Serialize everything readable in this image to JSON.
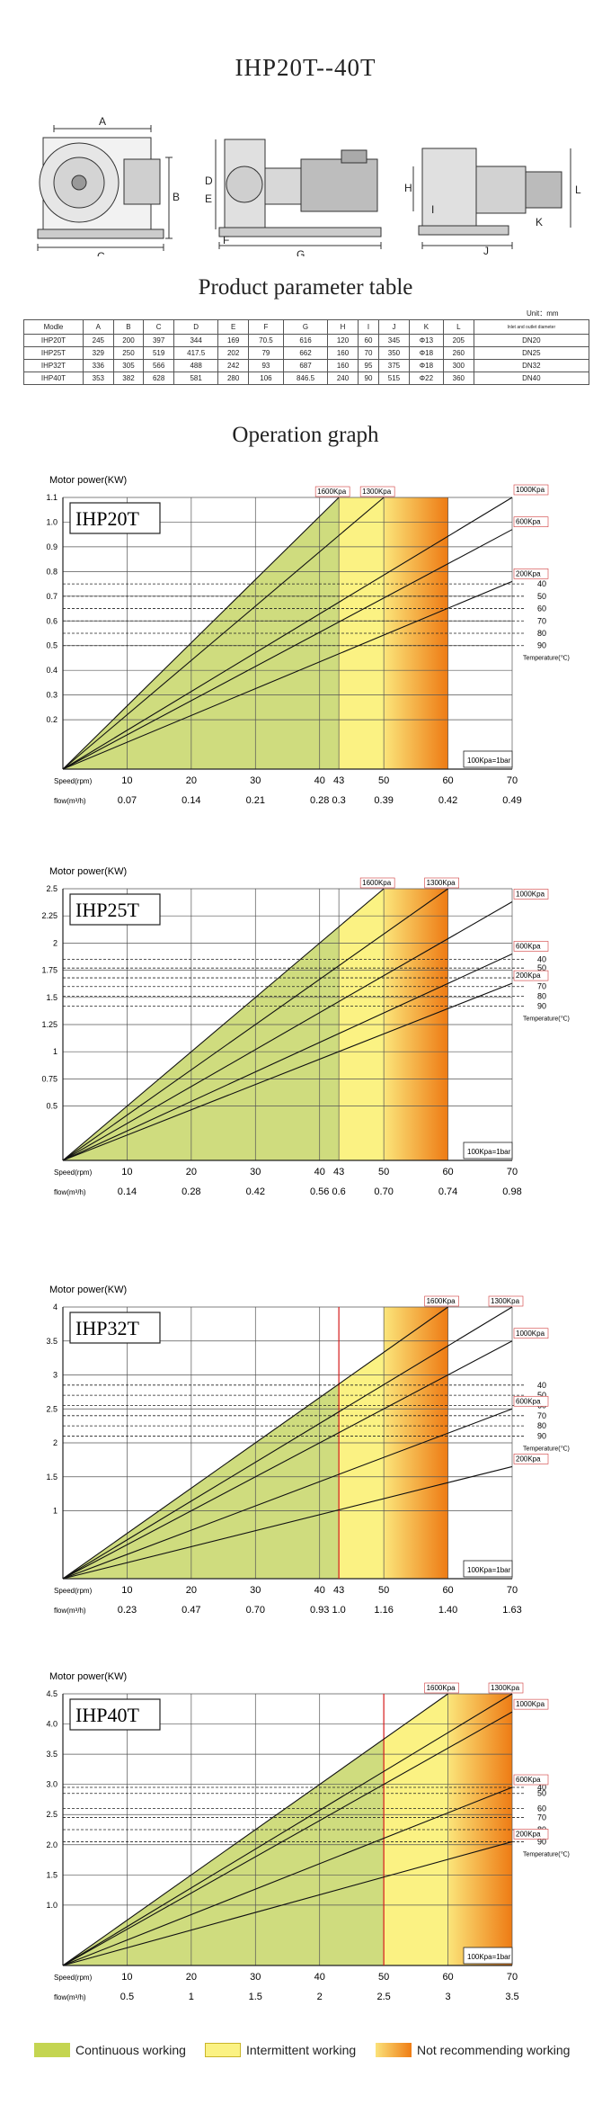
{
  "title": "IHP20T--40T",
  "drawing_labels": [
    "A",
    "B",
    "C",
    "D",
    "E",
    "F",
    "G",
    "H",
    "I",
    "J",
    "K",
    "L"
  ],
  "param_section_title": "Product parameter table",
  "unit_label": "Unit：mm",
  "param_table": {
    "headers": [
      "Modle",
      "A",
      "B",
      "C",
      "D",
      "E",
      "F",
      "G",
      "H",
      "I",
      "J",
      "K",
      "L",
      "Inlet and outlet diameter"
    ],
    "rows": [
      [
        "IHP20T",
        "245",
        "200",
        "397",
        "344",
        "169",
        "70.5",
        "616",
        "120",
        "60",
        "345",
        "Φ13",
        "205",
        "DN20"
      ],
      [
        "IHP25T",
        "329",
        "250",
        "519",
        "417.5",
        "202",
        "79",
        "662",
        "160",
        "70",
        "350",
        "Φ18",
        "260",
        "DN25"
      ],
      [
        "IHP32T",
        "336",
        "305",
        "566",
        "488",
        "242",
        "93",
        "687",
        "160",
        "95",
        "375",
        "Φ18",
        "300",
        "DN32"
      ],
      [
        "IHP40T",
        "353",
        "382",
        "628",
        "581",
        "280",
        "106",
        "846.5",
        "240",
        "90",
        "515",
        "Φ22",
        "360",
        "DN40"
      ]
    ]
  },
  "operation_section_title": "Operation graph",
  "common": {
    "ylabel": "Motor power(KW)",
    "speed_label": "Speed(rpm)",
    "flow_label": "flow(m³/h)",
    "note": "100Kpa=1bar",
    "temperature_label": "Temperature(℃)",
    "temperatures": [
      "40",
      "50",
      "60",
      "70",
      "80",
      "90"
    ]
  },
  "colors": {
    "continuous": "#cfdc7e",
    "intermittent": "#fbf283",
    "not_recommended": "#f08a1e",
    "limit_line": "#d81e1e",
    "pressure_label_border": "#d03a3a"
  },
  "chart_data": [
    {
      "type": "line",
      "model": "IHP20T",
      "ylim": [
        0,
        1.1
      ],
      "yticks": [
        "1.1",
        "1.0",
        "0.9",
        "0.8",
        "0.7",
        "0.6",
        "0.5",
        "0.4",
        "0.3",
        "0.2"
      ],
      "ytick_values": [
        1.1,
        1.0,
        0.9,
        0.8,
        0.7,
        0.6,
        0.5,
        0.4,
        0.3,
        0.2
      ],
      "xlim": [
        0,
        70
      ],
      "speed_ticks": [
        "10",
        "20",
        "30",
        "40",
        "43",
        "50",
        "60",
        "70"
      ],
      "speed_values": [
        10,
        20,
        30,
        40,
        43,
        50,
        60,
        70
      ],
      "flow_ticks": [
        "0.07",
        "0.14",
        "0.21",
        "0.28",
        "0.3",
        "0.39",
        "0.42",
        "0.49"
      ],
      "continuous_max_speed": 43,
      "intermittent_max_speed": 50,
      "not_recommended_max_speed": 60,
      "limit_line_speed": null,
      "temperature_power": [
        0.75,
        0.7,
        0.65,
        0.6,
        0.55,
        0.5
      ],
      "series": [
        {
          "name": "1600Kpa",
          "end_speed": 43,
          "end_power": 1.1
        },
        {
          "name": "1300Kpa",
          "end_speed": 50,
          "end_power": 1.1
        },
        {
          "name": "1000Kpa",
          "end_speed": 70,
          "end_power": 1.1
        },
        {
          "name": "600Kpa",
          "end_speed": 70,
          "end_power": 0.97
        },
        {
          "name": "200Kpa",
          "end_speed": 70,
          "end_power": 0.76
        }
      ]
    },
    {
      "type": "line",
      "model": "IHP25T",
      "ylim": [
        0,
        2.5
      ],
      "yticks": [
        "2.5",
        "2.25",
        "2",
        "1.75",
        "1.5",
        "1.25",
        "1",
        "0.75",
        "0.5"
      ],
      "ytick_values": [
        2.5,
        2.25,
        2.0,
        1.75,
        1.5,
        1.25,
        1.0,
        0.75,
        0.5
      ],
      "xlim": [
        0,
        70
      ],
      "speed_ticks": [
        "10",
        "20",
        "30",
        "40",
        "43",
        "50",
        "60",
        "70"
      ],
      "speed_values": [
        10,
        20,
        30,
        40,
        43,
        50,
        60,
        70
      ],
      "flow_ticks": [
        "0.14",
        "0.28",
        "0.42",
        "0.56",
        "0.6",
        "0.70",
        "0.74",
        "0.98"
      ],
      "continuous_max_speed": 43,
      "intermittent_max_speed": 50,
      "not_recommended_max_speed": 60,
      "limit_line_speed": null,
      "temperature_power": [
        1.85,
        1.77,
        1.68,
        1.6,
        1.51,
        1.42
      ],
      "series": [
        {
          "name": "1600Kpa",
          "end_speed": 50,
          "end_power": 2.5
        },
        {
          "name": "1300Kpa",
          "end_speed": 60,
          "end_power": 2.5
        },
        {
          "name": "1000Kpa",
          "end_speed": 70,
          "end_power": 2.38
        },
        {
          "name": "600Kpa",
          "end_speed": 70,
          "end_power": 1.9
        },
        {
          "name": "200Kpa",
          "end_speed": 70,
          "end_power": 1.63
        }
      ]
    },
    {
      "type": "line",
      "model": "IHP32T",
      "ylim": [
        0,
        4
      ],
      "yticks": [
        "4",
        "3.5",
        "3",
        "2.5",
        "2",
        "1.5",
        "1"
      ],
      "ytick_values": [
        4,
        3.5,
        3,
        2.5,
        2,
        1.5,
        1
      ],
      "xlim": [
        0,
        70
      ],
      "speed_ticks": [
        "10",
        "20",
        "30",
        "40",
        "43",
        "50",
        "60",
        "70"
      ],
      "speed_values": [
        10,
        20,
        30,
        40,
        43,
        50,
        60,
        70
      ],
      "flow_ticks": [
        "0.23",
        "0.47",
        "0.70",
        "0.93",
        "1.0",
        "1.16",
        "1.40",
        "1.63"
      ],
      "continuous_max_speed": 43,
      "intermittent_max_speed": 50,
      "not_recommended_max_speed": 60,
      "limit_line_speed": 43,
      "temperature_power": [
        2.85,
        2.7,
        2.55,
        2.4,
        2.25,
        2.1
      ],
      "series": [
        {
          "name": "1600Kpa",
          "end_speed": 60,
          "end_power": 4.0
        },
        {
          "name": "1300Kpa",
          "end_speed": 70,
          "end_power": 4.0
        },
        {
          "name": "1000Kpa",
          "end_speed": 70,
          "end_power": 3.5
        },
        {
          "name": "600Kpa",
          "end_speed": 70,
          "end_power": 2.5
        },
        {
          "name": "200Kpa",
          "end_speed": 70,
          "end_power": 1.65
        }
      ]
    },
    {
      "type": "line",
      "model": "IHP40T",
      "ylim": [
        0,
        4.5
      ],
      "yticks": [
        "4.5",
        "4.0",
        "3.5",
        "3.0",
        "2.5",
        "2.0",
        "1.5",
        "1.0"
      ],
      "ytick_values": [
        4.5,
        4.0,
        3.5,
        3.0,
        2.5,
        2.0,
        1.5,
        1.0
      ],
      "xlim": [
        0,
        70
      ],
      "speed_ticks": [
        "10",
        "20",
        "30",
        "40",
        "50",
        "60",
        "70"
      ],
      "speed_values": [
        10,
        20,
        30,
        40,
        50,
        60,
        70
      ],
      "flow_ticks": [
        "0.5",
        "1",
        "1.5",
        "2",
        "2.5",
        "3",
        "3.5"
      ],
      "continuous_max_speed": 50,
      "intermittent_max_speed": 60,
      "not_recommended_max_speed": 70,
      "limit_line_speed": 50,
      "temperature_power": [
        2.95,
        2.85,
        2.6,
        2.45,
        2.25,
        2.05
      ],
      "series": [
        {
          "name": "1600Kpa",
          "end_speed": 60,
          "end_power": 4.5
        },
        {
          "name": "1300Kpa",
          "end_speed": 70,
          "end_power": 4.5
        },
        {
          "name": "1000Kpa",
          "end_speed": 70,
          "end_power": 4.2
        },
        {
          "name": "600Kpa",
          "end_speed": 70,
          "end_power": 2.95
        },
        {
          "name": "200Kpa",
          "end_speed": 70,
          "end_power": 2.05
        }
      ]
    }
  ],
  "legend": {
    "continuous": "Continuous working",
    "intermittent": "Intermittent working",
    "not_recommended": "Not recommending working"
  }
}
